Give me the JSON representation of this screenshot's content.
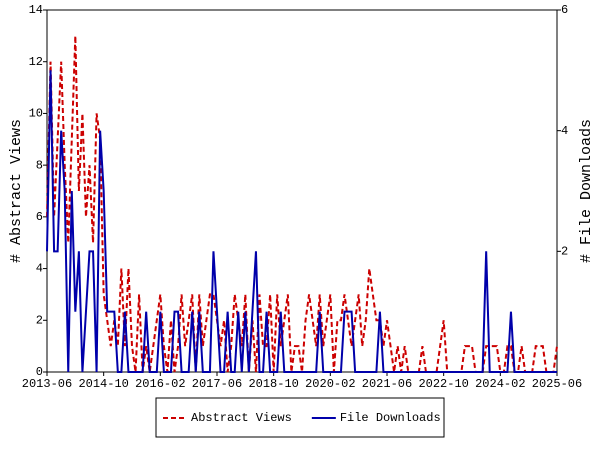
{
  "chart_data": {
    "type": "line",
    "y_label": "# Abstract Views",
    "y2_label": "# File Downloads",
    "categories": [
      "2013-06",
      null,
      null,
      null,
      null,
      null,
      null,
      null,
      null,
      null,
      null,
      null,
      null,
      null,
      null,
      null,
      "2014-10",
      null,
      null,
      null,
      null,
      null,
      null,
      null,
      null,
      null,
      null,
      null,
      null,
      null,
      null,
      null,
      "2016-02",
      null,
      null,
      null,
      null,
      null,
      null,
      null,
      null,
      null,
      null,
      null,
      null,
      null,
      null,
      null,
      "2017-06",
      null,
      null,
      null,
      null,
      null,
      null,
      null,
      null,
      null,
      null,
      null,
      null,
      null,
      null,
      null,
      "2018-10",
      null,
      null,
      null,
      null,
      null,
      null,
      null,
      null,
      null,
      null,
      null,
      null,
      null,
      null,
      null,
      "2020-02",
      null,
      null,
      null,
      null,
      null,
      null,
      null,
      null,
      null,
      null,
      null,
      null,
      null,
      null,
      null,
      "2021-06",
      null,
      null,
      null,
      null,
      null,
      null,
      null,
      null,
      null,
      null,
      null,
      null,
      null,
      null,
      null,
      "2022-10",
      null,
      null,
      null,
      null,
      null,
      null,
      null,
      null,
      null,
      null,
      null,
      null,
      null,
      null,
      null,
      "2024-02",
      null,
      null,
      null,
      null,
      null,
      null,
      null,
      null,
      null,
      null,
      null,
      null,
      null,
      null,
      null,
      "2025-06"
    ],
    "series": [
      {
        "name": "Abstract Views",
        "color": "#cc0000",
        "dash": true,
        "axis": "y",
        "values": [
          6,
          12,
          6,
          9,
          12,
          8,
          5,
          9,
          13,
          7,
          10,
          6,
          8,
          5,
          10,
          9,
          3,
          2,
          1,
          2,
          1,
          4,
          1,
          4,
          1,
          0,
          3,
          0,
          1,
          0,
          1,
          2,
          3,
          1,
          0,
          2,
          0,
          1,
          3,
          1,
          2,
          3,
          0,
          3,
          1,
          2,
          3,
          3,
          2,
          1,
          2,
          0,
          1,
          3,
          2,
          1,
          3,
          0,
          2,
          0,
          3,
          1,
          1,
          3,
          0,
          3,
          1,
          2,
          3,
          0,
          1,
          1,
          0,
          2,
          3,
          2,
          1,
          3,
          1,
          2,
          3,
          0,
          2,
          2,
          3,
          2,
          1,
          2,
          3,
          1,
          2,
          4,
          3,
          2,
          2,
          1,
          2,
          1,
          0,
          1,
          0,
          1,
          0,
          0,
          0,
          0,
          1,
          0,
          0,
          0,
          0,
          1,
          2,
          0,
          0,
          0,
          0,
          0,
          1,
          1,
          1,
          0,
          0,
          0,
          1,
          1,
          1,
          1,
          0,
          0,
          1,
          1,
          0,
          0,
          1,
          0,
          0,
          0,
          1,
          1,
          1,
          0,
          0,
          0,
          1
        ],
        "ylim": [
          0,
          14
        ]
      },
      {
        "name": "File Downloads",
        "color": "#0000aa",
        "dash": false,
        "axis": "y2",
        "values": [
          2,
          5,
          2,
          2,
          4,
          3,
          0,
          3,
          1,
          2,
          0,
          1,
          2,
          2,
          0,
          4,
          3,
          1,
          1,
          1,
          0,
          0,
          1,
          0,
          0,
          0,
          0,
          0,
          1,
          0,
          0,
          0,
          1,
          0,
          0,
          0,
          1,
          1,
          0,
          0,
          0,
          1,
          0,
          1,
          0,
          0,
          0,
          2,
          1,
          0,
          0,
          1,
          0,
          0,
          1,
          0,
          1,
          0,
          1,
          2,
          0,
          0,
          1,
          0,
          0,
          0,
          1,
          0,
          0,
          0,
          0,
          0,
          0,
          0,
          0,
          0,
          0,
          1,
          0,
          0,
          0,
          0,
          0,
          0,
          1,
          1,
          1,
          0,
          0,
          0,
          0,
          0,
          0,
          0,
          1,
          0,
          0,
          0,
          0,
          0,
          0,
          0,
          0,
          0,
          0,
          0,
          0,
          0,
          0,
          0,
          0,
          0,
          0,
          0,
          0,
          0,
          0,
          0,
          0,
          0,
          0,
          0,
          0,
          0,
          2,
          0,
          0,
          0,
          0,
          0,
          0,
          1,
          0,
          0,
          0,
          0,
          0,
          0,
          0,
          0,
          0,
          0,
          0,
          0,
          0
        ]
      }
    ],
    "ylim": [
      0,
      14
    ],
    "yticks": [
      0,
      2,
      4,
      6,
      8,
      10,
      12,
      14
    ],
    "y2lim": [
      0,
      6
    ],
    "y2ticks": [
      2,
      4,
      6
    ],
    "legend": "bottom"
  }
}
